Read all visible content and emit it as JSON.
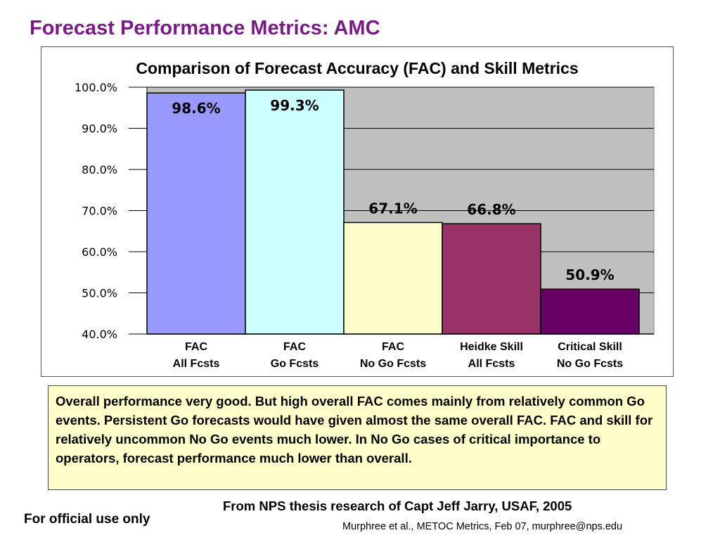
{
  "slide": {
    "title": "Forecast Performance Metrics: AMC",
    "summary": "Overall performance very good.  But high overall FAC comes mainly from relatively common Go events.  Persistent Go forecasts would have given almost the same overall FAC.  FAC and skill for relatively uncommon No Go events much lower.  In No Go cases of critical importance to operators, forecast performance much lower than overall.",
    "source": "From NPS thesis research of Capt Jeff Jarry, USAF, 2005",
    "official_use": "For official use only",
    "footer": "Murphree et al., METOC Metrics, Feb 07, murphree@nps.edu"
  },
  "chart_data": {
    "type": "bar",
    "title": "Comparison of Forecast Accuracy (FAC) and Skill Metrics",
    "xlabel": "",
    "ylabel": "",
    "categories": [
      [
        "FAC",
        "All Fcsts"
      ],
      [
        "FAC",
        "Go Fcsts"
      ],
      [
        "FAC",
        "No Go Fcsts"
      ],
      [
        "Heidke Skill",
        "All Fcsts"
      ],
      [
        "Critical Skill",
        "No Go Fcsts"
      ]
    ],
    "values": [
      98.6,
      99.3,
      67.1,
      66.8,
      50.9
    ],
    "data_labels": [
      "98.6%",
      "99.3%",
      "67.1%",
      "66.8%",
      "50.9%"
    ],
    "bar_colors": [
      "#9999ff",
      "#ccffff",
      "#ffffcc",
      "#993366",
      "#660066"
    ],
    "ylim": [
      40,
      100
    ],
    "yticks": [
      "40.0%",
      "50.0%",
      "60.0%",
      "70.0%",
      "80.0%",
      "90.0%",
      "100.0%"
    ],
    "grid": true,
    "plot_background": "#c0c0c0",
    "legend": "none"
  }
}
